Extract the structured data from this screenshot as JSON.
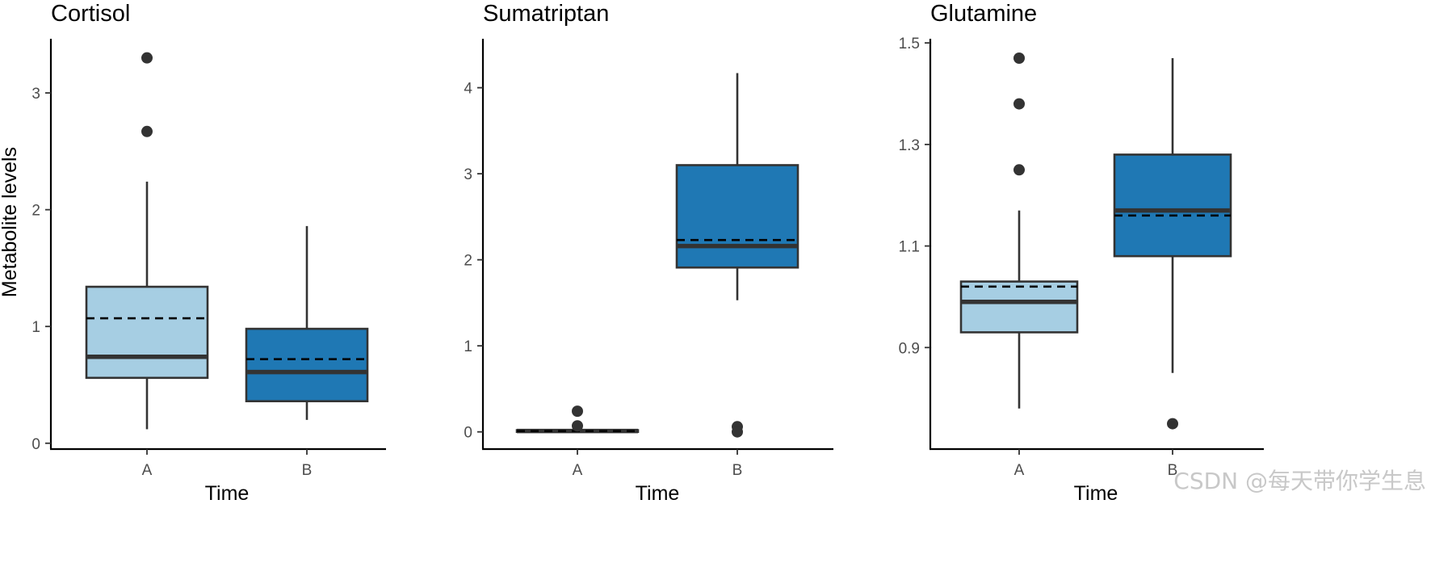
{
  "chart_data": [
    {
      "type": "box",
      "title": "Cortisol",
      "xlabel": "Time",
      "ylabel": "Metabolite levels",
      "categories": [
        "A",
        "B"
      ],
      "ylim": [
        -0.05,
        3.45
      ],
      "yticks": [
        0,
        1,
        2,
        3
      ],
      "ytick_labels": [
        "0",
        "1",
        "2",
        "3"
      ],
      "grid": false,
      "boxes": [
        {
          "category": "A",
          "min": 0.12,
          "q1": 0.56,
          "median": 0.74,
          "q3": 1.34,
          "max": 2.24,
          "mean": 1.07,
          "outliers": [
            3.3,
            2.67
          ],
          "color": "#a6cee3"
        },
        {
          "category": "B",
          "min": 0.2,
          "q1": 0.36,
          "median": 0.61,
          "q3": 0.98,
          "max": 1.86,
          "mean": 0.72,
          "outliers": [],
          "color": "#1f78b4"
        }
      ]
    },
    {
      "type": "box",
      "title": "Sumatriptan",
      "xlabel": "Time",
      "ylabel": "",
      "categories": [
        "A",
        "B"
      ],
      "ylim": [
        -0.2,
        4.55
      ],
      "yticks": [
        0,
        1,
        2,
        3,
        4
      ],
      "ytick_labels": [
        "0",
        "1",
        "2",
        "3",
        "4"
      ],
      "grid": false,
      "boxes": [
        {
          "category": "A",
          "min": 0.0,
          "q1": 0.0,
          "median": 0.01,
          "q3": 0.02,
          "max": 0.03,
          "mean": 0.01,
          "outliers": [
            0.24,
            0.07
          ],
          "color": "#a6cee3"
        },
        {
          "category": "B",
          "min": 1.53,
          "q1": 1.91,
          "median": 2.16,
          "q3": 3.1,
          "max": 4.17,
          "mean": 2.23,
          "outliers": [
            0.06,
            0.0
          ],
          "color": "#1f78b4"
        }
      ]
    },
    {
      "type": "box",
      "title": "Glutamine",
      "xlabel": "Time",
      "ylabel": "",
      "categories": [
        "A",
        "B"
      ],
      "ylim": [
        0.7,
        1.505
      ],
      "yticks": [
        0.9,
        1.1,
        1.3,
        1.5
      ],
      "ytick_labels": [
        "0.9",
        "1.1",
        "1.3",
        "1.5"
      ],
      "grid": false,
      "boxes": [
        {
          "category": "A",
          "min": 0.78,
          "q1": 0.93,
          "median": 0.99,
          "q3": 1.03,
          "max": 1.17,
          "mean": 1.02,
          "outliers": [
            1.47,
            1.38,
            1.25
          ],
          "color": "#a6cee3"
        },
        {
          "category": "B",
          "min": 0.85,
          "q1": 1.08,
          "median": 1.17,
          "q3": 1.28,
          "max": 1.47,
          "mean": 1.16,
          "outliers": [
            0.75
          ],
          "color": "#1f78b4"
        }
      ]
    }
  ],
  "watermark": "CSDN @每天带你学生息",
  "colors": {
    "box_light": "#a6cee3",
    "box_dark": "#1f78b4",
    "line": "#333333",
    "axis": "#000000"
  }
}
